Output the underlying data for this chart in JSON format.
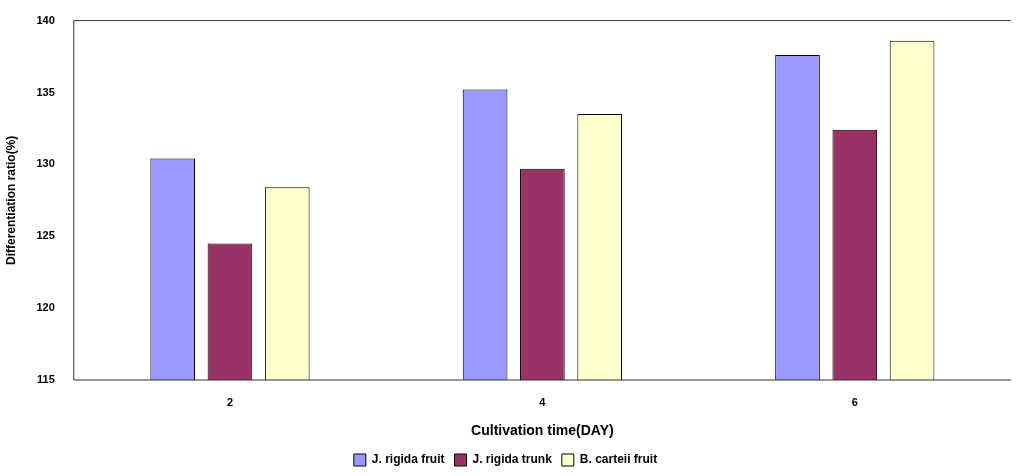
{
  "chart_data": {
    "type": "bar",
    "xlabel": "Cultivation time(DAY)",
    "ylabel": "Differentiation ratio(%)",
    "categories": [
      "2",
      "4",
      "6"
    ],
    "series": [
      {
        "name": "J. rigida fruit",
        "color": "#9999ff",
        "values": [
          130.4,
          135.2,
          137.6
        ]
      },
      {
        "name": "J. rigida trunk",
        "color": "#993366",
        "values": [
          124.5,
          129.7,
          132.4
        ]
      },
      {
        "name": "B. carteii fruit",
        "color": "#ffffcc",
        "values": [
          128.4,
          133.5,
          138.6
        ]
      }
    ],
    "ylim": [
      115,
      140
    ],
    "yticks": [
      115,
      120,
      125,
      130,
      135,
      140
    ],
    "grid": false,
    "legend": "bottom"
  }
}
